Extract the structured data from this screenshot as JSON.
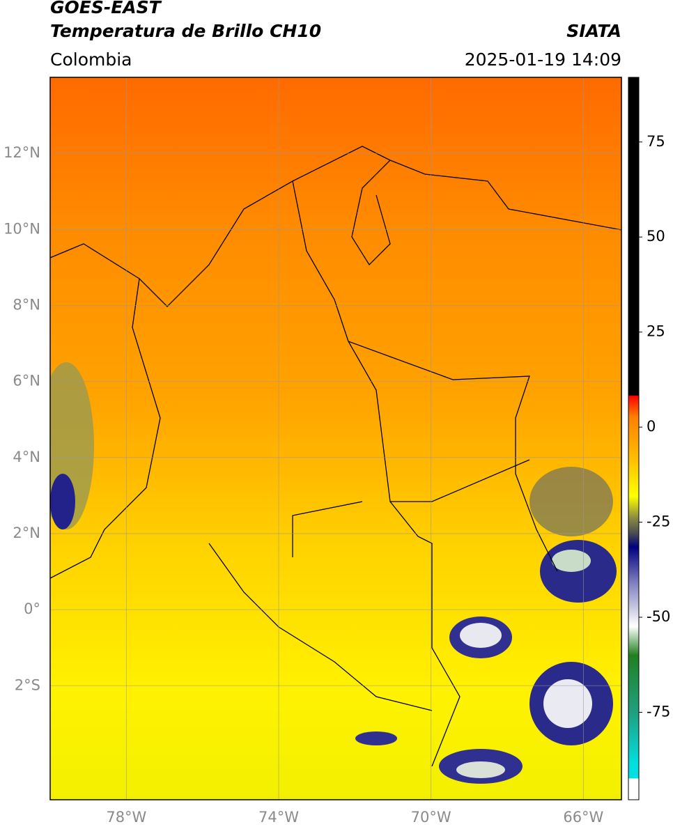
{
  "header": {
    "title": "GOES-EAST",
    "subtitle": "Temperatura de Brillo CH10",
    "source": "SIATA",
    "region": "Colombia",
    "datetime": "2025-01-19 14:09"
  },
  "map": {
    "xlim": [
      -80,
      -65
    ],
    "ylim": [
      -5,
      14
    ],
    "xticks": [
      {
        "value": -78,
        "label": "78°W"
      },
      {
        "value": -74,
        "label": "74°W"
      },
      {
        "value": -70,
        "label": "70°W"
      },
      {
        "value": -66,
        "label": "66°W"
      }
    ],
    "yticks": [
      {
        "value": 12,
        "label": "12°N"
      },
      {
        "value": 10,
        "label": "10°N"
      },
      {
        "value": 8,
        "label": "8°N"
      },
      {
        "value": 6,
        "label": "6°N"
      },
      {
        "value": 4,
        "label": "4°N"
      },
      {
        "value": 2,
        "label": "2°N"
      },
      {
        "value": 0,
        "label": "0°"
      },
      {
        "value": -2,
        "label": "2°S"
      }
    ]
  },
  "colorbar": {
    "lim": [
      -98,
      92
    ],
    "ticks": [
      75,
      50,
      25,
      0,
      -25,
      -50,
      -75
    ]
  }
}
